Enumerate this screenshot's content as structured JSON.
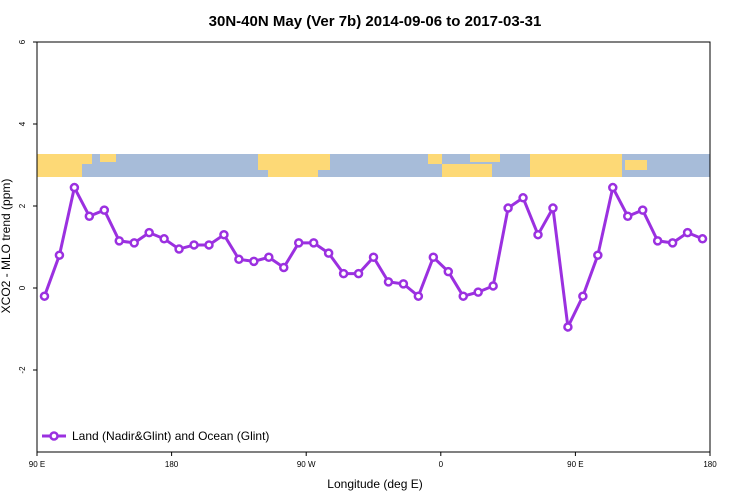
{
  "chart_data": {
    "type": "line",
    "title": "30N-40N May (Ver 7b)   2014-09-06 to 2017-03-31",
    "x_label": "Longitude (deg E)",
    "y_label": "XCO2 - MLO trend (ppm)",
    "x": [
      95,
      105,
      115,
      125,
      135,
      145,
      155,
      165,
      175,
      185,
      195,
      205,
      215,
      225,
      235,
      245,
      255,
      265,
      275,
      285,
      295,
      305,
      315,
      325,
      335,
      345,
      355,
      365,
      375,
      385,
      395,
      405,
      415,
      425,
      435,
      445,
      455,
      465,
      475,
      485,
      495,
      505,
      515,
      525,
      535
    ],
    "series": [
      {
        "name": "Land (Nadir&Glint) and Ocean (Glint)",
        "color": "#9b30e0",
        "values": [
          -0.2,
          0.8,
          2.45,
          1.75,
          1.9,
          1.15,
          1.1,
          1.35,
          1.2,
          0.95,
          1.05,
          1.05,
          1.3,
          0.7,
          0.65,
          0.75,
          0.5,
          1.1,
          1.1,
          0.85,
          0.35,
          0.35,
          0.75,
          0.15,
          0.1,
          -0.2,
          0.75,
          0.4,
          -0.2,
          -0.1,
          0.05,
          1.95,
          2.2,
          1.3,
          1.95,
          -0.95,
          -0.2,
          0.8,
          2.45,
          1.75,
          1.9,
          1.15,
          1.1,
          1.35,
          1.2
        ]
      }
    ],
    "xlim": [
      90,
      540
    ],
    "xticks": [
      {
        "value": 90,
        "label": "90 E"
      },
      180,
      {
        "value": 270,
        "label": "90 W"
      },
      {
        "value": 360,
        "label": "0"
      },
      {
        "value": 450,
        "label": "90 E"
      },
      {
        "value": 540,
        "label": "180"
      }
    ],
    "ylim": [
      -4,
      6
    ],
    "yticks": [
      -2,
      0,
      2,
      4,
      6
    ],
    "legend": "bottom-left"
  }
}
